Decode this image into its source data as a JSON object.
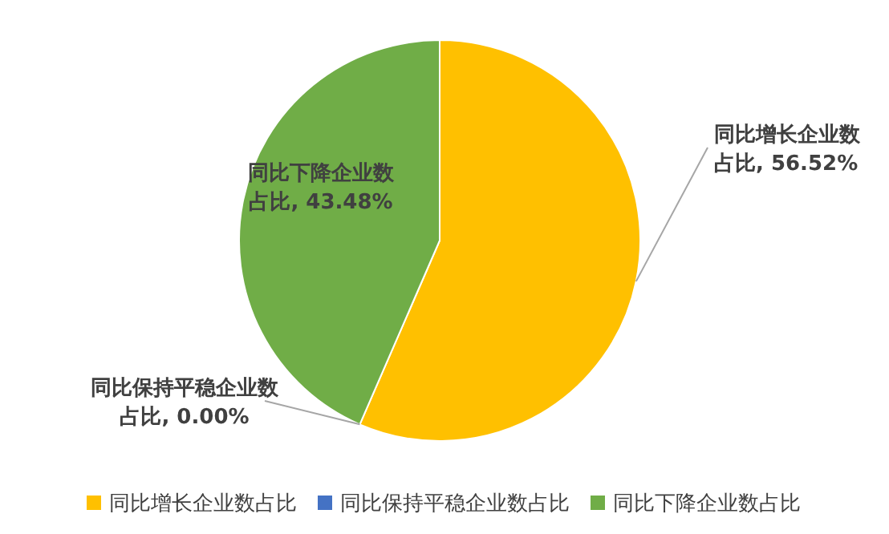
{
  "chart_data": {
    "type": "pie",
    "categories": [
      "同比增长企业数占比",
      "同比保持平稳企业数占比",
      "同比下降企业数占比"
    ],
    "values": [
      56.52,
      0.0,
      43.48
    ],
    "colors": [
      "#ffc000",
      "#4472c4",
      "#70ad47"
    ],
    "value_labels": [
      "同比增长企业数占比, 56.52%",
      "同比保持平稳企业数占比, 0.00%",
      "同比下降企业数占比, 43.48%"
    ],
    "legend": "bottom"
  }
}
